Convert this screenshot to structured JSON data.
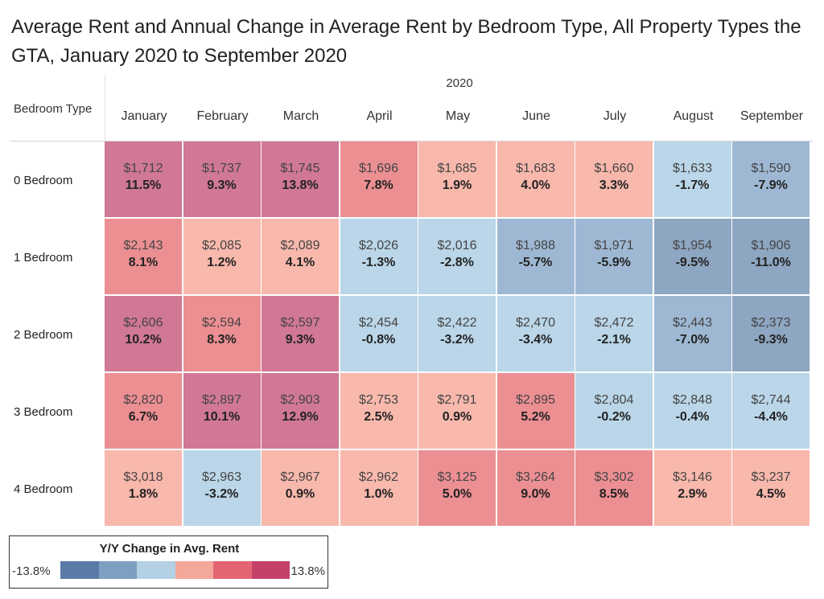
{
  "title": "Average Rent and Annual Change in Average Rent by Bedroom Type, All Property Types the GTA, January 2020 to September 2020",
  "chart_data": {
    "type": "table",
    "title": "Average Rent and Annual Change in Average Rent by Bedroom Type, All Property Types the GTA, January 2020 to September 2020",
    "column_group": "2020",
    "row_header": "Bedroom Type",
    "columns": [
      "January",
      "February",
      "March",
      "April",
      "May",
      "June",
      "July",
      "August",
      "September"
    ],
    "rows": [
      {
        "label": "0 Bedroom",
        "rent": [
          "$1,712",
          "$1,737",
          "$1,745",
          "$1,696",
          "$1,685",
          "$1,683",
          "$1,660",
          "$1,633",
          "$1,590"
        ],
        "change": [
          "11.5%",
          "9.3%",
          "13.8%",
          "7.8%",
          "1.9%",
          "4.0%",
          "3.3%",
          "-1.7%",
          "-7.9%"
        ]
      },
      {
        "label": "1 Bedroom",
        "rent": [
          "$2,143",
          "$2,085",
          "$2,089",
          "$2,026",
          "$2,016",
          "$1,988",
          "$1,971",
          "$1,954",
          "$1,906"
        ],
        "change": [
          "8.1%",
          "1.2%",
          "4.1%",
          "-1.3%",
          "-2.8%",
          "-5.7%",
          "-5.9%",
          "-9.5%",
          "-11.0%"
        ]
      },
      {
        "label": "2 Bedroom",
        "rent": [
          "$2,606",
          "$2,594",
          "$2,597",
          "$2,454",
          "$2,422",
          "$2,470",
          "$2,472",
          "$2,443",
          "$2,373"
        ],
        "change": [
          "10.2%",
          "8.3%",
          "9.3%",
          "-0.8%",
          "-3.2%",
          "-3.4%",
          "-2.1%",
          "-7.0%",
          "-9.3%"
        ]
      },
      {
        "label": "3 Bedroom",
        "rent": [
          "$2,820",
          "$2,897",
          "$2,903",
          "$2,753",
          "$2,791",
          "$2,895",
          "$2,804",
          "$2,848",
          "$2,744"
        ],
        "change": [
          "6.7%",
          "10.1%",
          "12.9%",
          "2.5%",
          "0.9%",
          "5.2%",
          "-0.2%",
          "-0.4%",
          "-4.4%"
        ]
      },
      {
        "label": "4 Bedroom",
        "rent": [
          "$3,018",
          "$2,963",
          "$2,967",
          "$2,962",
          "$3,125",
          "$3,264",
          "$3,302",
          "$3,146",
          "$3,237"
        ],
        "change": [
          "1.8%",
          "-3.2%",
          "0.9%",
          "1.0%",
          "5.0%",
          "9.0%",
          "8.5%",
          "2.9%",
          "4.5%"
        ]
      }
    ],
    "color_encoding": {
      "title": "Y/Y Change in Avg. Rent",
      "min_label": "-13.8%",
      "max_label": "13.8%",
      "min": -13.8,
      "max": 13.8,
      "bins": 6,
      "colors": [
        "#5b7ba6",
        "#7e9fc2",
        "#b3d0e4",
        "#f4a89a",
        "#e36573",
        "#c4426a"
      ],
      "cell_colors": [
        "#8da6c1",
        "#9eb8d3",
        "#bad6e8",
        "#f8b8ac",
        "#ec8f93",
        "#d07894"
      ]
    }
  }
}
